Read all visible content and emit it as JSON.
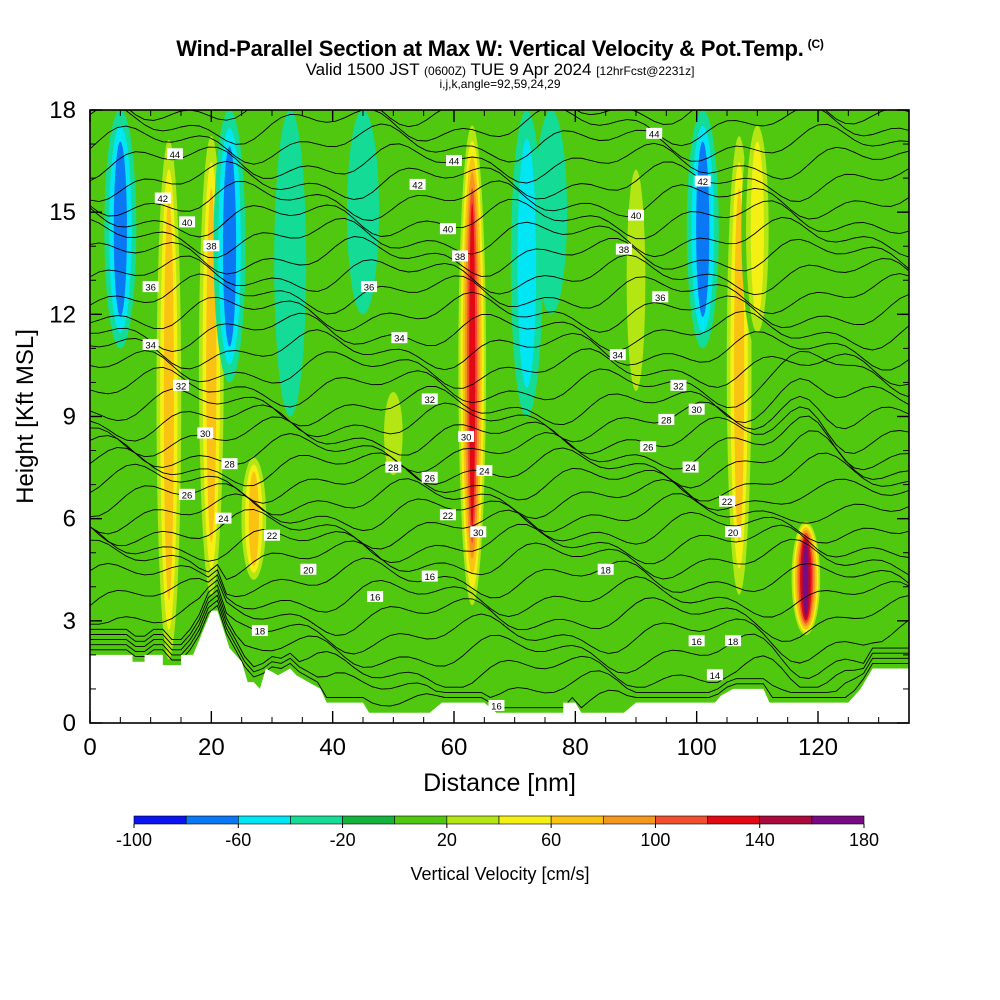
{
  "title": {
    "main": "Wind-Parallel Section at Max W: Vertical Velocity & Pot.Temp.",
    "copyright": "(C)",
    "valid_prefix": "Valid 1500 JST",
    "valid_utc": "(0600Z)",
    "valid_date": "TUE 9 Apr 2024",
    "forecast": "[12hrFcst@2231z]",
    "ijk": "i,j,k,angle=92,59,24,29"
  },
  "chart_data": {
    "type": "heatmap",
    "xlabel": "Distance [nm]",
    "ylabel": "Height [Kft MSL]",
    "xlim": [
      0,
      135
    ],
    "ylim": [
      0,
      18
    ],
    "x_ticks": [
      "0",
      "20",
      "40",
      "60",
      "80",
      "100",
      "120"
    ],
    "y_ticks": [
      "0",
      "3",
      "6",
      "9",
      "12",
      "15",
      "18"
    ],
    "colorbar": {
      "label": "Vertical Velocity [cm/s]",
      "tick_labels": [
        "-100",
        "-60",
        "-20",
        "20",
        "60",
        "100",
        "140",
        "180"
      ],
      "bounds": [
        -100,
        -80,
        -60,
        -40,
        -20,
        0,
        20,
        40,
        60,
        80,
        100,
        120,
        140,
        160,
        180
      ],
      "colors": [
        "#0a14f0",
        "#0a78f5",
        "#00e6f5",
        "#14dc96",
        "#14b43c",
        "#50c80f",
        "#b4e614",
        "#f5f014",
        "#fac314",
        "#f5961e",
        "#f0502d",
        "#e10a14",
        "#aa0a3c",
        "#780a82"
      ]
    },
    "terrain_kft": [
      [
        0,
        2
      ],
      [
        7,
        2
      ],
      [
        7,
        1.8
      ],
      [
        9,
        1.8
      ],
      [
        9,
        2
      ],
      [
        12,
        2
      ],
      [
        12,
        1.7
      ],
      [
        15,
        1.7
      ],
      [
        15,
        2
      ],
      [
        17,
        2
      ],
      [
        20,
        3.3
      ],
      [
        21,
        3.3
      ],
      [
        23,
        2.2
      ],
      [
        25,
        1.8
      ],
      [
        26,
        1.2
      ],
      [
        27,
        1.2
      ],
      [
        28,
        1
      ],
      [
        29,
        1.6
      ],
      [
        31,
        1.4
      ],
      [
        33,
        1.6
      ],
      [
        34,
        1.4
      ],
      [
        36,
        1.2
      ],
      [
        38,
        1
      ],
      [
        39,
        0.6
      ],
      [
        45,
        0.6
      ],
      [
        46,
        0.3
      ],
      [
        56,
        0.3
      ],
      [
        58,
        0.6
      ],
      [
        65,
        0.6
      ],
      [
        67,
        0.3
      ],
      [
        78,
        0.3
      ],
      [
        78,
        0.6
      ],
      [
        80,
        0.6
      ],
      [
        81,
        0.3
      ],
      [
        88,
        0.3
      ],
      [
        90,
        0.6
      ],
      [
        103,
        0.6
      ],
      [
        104,
        0.8
      ],
      [
        106,
        1
      ],
      [
        111,
        1
      ],
      [
        112,
        0.6
      ],
      [
        125,
        0.6
      ],
      [
        127,
        1
      ],
      [
        129,
        1.6
      ],
      [
        135,
        1.6
      ]
    ],
    "w_features": [
      {
        "x": 5,
        "z0": 11,
        "z1": 18,
        "w": -70
      },
      {
        "x": 13,
        "z0": 1,
        "z1": 18,
        "w": 60
      },
      {
        "x": 20,
        "z0": 3,
        "z1": 18,
        "w": 60
      },
      {
        "x": 23,
        "z0": 10,
        "z1": 18,
        "w": -60
      },
      {
        "x": 27,
        "z0": 4,
        "z1": 8,
        "w": 60
      },
      {
        "x": 33,
        "z0": 9,
        "z1": 18,
        "w": -30
      },
      {
        "x": 45,
        "z0": 12,
        "z1": 18,
        "w": -30
      },
      {
        "x": 50,
        "z0": 7,
        "z1": 10,
        "w": 35
      },
      {
        "x": 63,
        "z0": 3,
        "z1": 18,
        "w": 130
      },
      {
        "x": 72,
        "z0": 9,
        "z1": 18,
        "w": -40
      },
      {
        "x": 76,
        "z0": 12,
        "z1": 18,
        "w": -30
      },
      {
        "x": 90,
        "z0": 9,
        "z1": 17,
        "w": 35
      },
      {
        "x": 101,
        "z0": 11,
        "z1": 18,
        "w": -70
      },
      {
        "x": 107,
        "z0": 3,
        "z1": 18,
        "w": 70
      },
      {
        "x": 110,
        "z0": 11,
        "z1": 18,
        "w": 40
      },
      {
        "x": 118,
        "z0": 2.5,
        "z1": 6,
        "w": 160
      }
    ],
    "theta_contours": [
      {
        "value": "14",
        "label_x": 103,
        "label_z": 1.4
      },
      {
        "value": "16",
        "label_x": 67,
        "label_z": 0.5
      },
      {
        "value": "16",
        "label_x": 47,
        "label_z": 3.7
      },
      {
        "value": "16",
        "label_x": 56,
        "label_z": 4.3
      },
      {
        "value": "16",
        "label_x": 100,
        "label_z": 2.4
      },
      {
        "value": "18",
        "label_x": 28,
        "label_z": 2.7
      },
      {
        "value": "18",
        "label_x": 85,
        "label_z": 4.5
      },
      {
        "value": "18",
        "label_x": 106,
        "label_z": 2.4
      },
      {
        "value": "20",
        "label_x": 36,
        "label_z": 4.5
      },
      {
        "value": "20",
        "label_x": 106,
        "label_z": 5.6
      },
      {
        "value": "22",
        "label_x": 30,
        "label_z": 5.5
      },
      {
        "value": "22",
        "label_x": 59,
        "label_z": 6.1
      },
      {
        "value": "22",
        "label_x": 105,
        "label_z": 6.5
      },
      {
        "value": "24",
        "label_x": 22,
        "label_z": 6.0
      },
      {
        "value": "24",
        "label_x": 65,
        "label_z": 7.4
      },
      {
        "value": "24",
        "label_x": 99,
        "label_z": 7.5
      },
      {
        "value": "26",
        "label_x": 16,
        "label_z": 6.7
      },
      {
        "value": "26",
        "label_x": 56,
        "label_z": 7.2
      },
      {
        "value": "26",
        "label_x": 92,
        "label_z": 8.1
      },
      {
        "value": "28",
        "label_x": 23,
        "label_z": 7.6
      },
      {
        "value": "28",
        "label_x": 50,
        "label_z": 7.5
      },
      {
        "value": "28",
        "label_x": 95,
        "label_z": 8.9
      },
      {
        "value": "30",
        "label_x": 19,
        "label_z": 8.5
      },
      {
        "value": "30",
        "label_x": 62,
        "label_z": 8.4
      },
      {
        "value": "30",
        "label_x": 64,
        "label_z": 5.6
      },
      {
        "value": "30",
        "label_x": 100,
        "label_z": 9.2
      },
      {
        "value": "32",
        "label_x": 15,
        "label_z": 9.9
      },
      {
        "value": "32",
        "label_x": 56,
        "label_z": 9.5
      },
      {
        "value": "32",
        "label_x": 97,
        "label_z": 9.9
      },
      {
        "value": "34",
        "label_x": 10,
        "label_z": 11.1
      },
      {
        "value": "34",
        "label_x": 51,
        "label_z": 11.3
      },
      {
        "value": "34",
        "label_x": 87,
        "label_z": 10.8
      },
      {
        "value": "36",
        "label_x": 10,
        "label_z": 12.8
      },
      {
        "value": "36",
        "label_x": 46,
        "label_z": 12.8
      },
      {
        "value": "36",
        "label_x": 94,
        "label_z": 12.5
      },
      {
        "value": "38",
        "label_x": 20,
        "label_z": 14.0
      },
      {
        "value": "38",
        "label_x": 61,
        "label_z": 13.7
      },
      {
        "value": "38",
        "label_x": 88,
        "label_z": 13.9
      },
      {
        "value": "40",
        "label_x": 16,
        "label_z": 14.7
      },
      {
        "value": "40",
        "label_x": 59,
        "label_z": 14.5
      },
      {
        "value": "40",
        "label_x": 90,
        "label_z": 14.9
      },
      {
        "value": "42",
        "label_x": 12,
        "label_z": 15.4
      },
      {
        "value": "42",
        "label_x": 54,
        "label_z": 15.8
      },
      {
        "value": "42",
        "label_x": 101,
        "label_z": 15.9
      },
      {
        "value": "44",
        "label_x": 14,
        "label_z": 16.7
      },
      {
        "value": "44",
        "label_x": 60,
        "label_z": 16.5
      },
      {
        "value": "44",
        "label_x": 93,
        "label_z": 17.3
      }
    ]
  }
}
